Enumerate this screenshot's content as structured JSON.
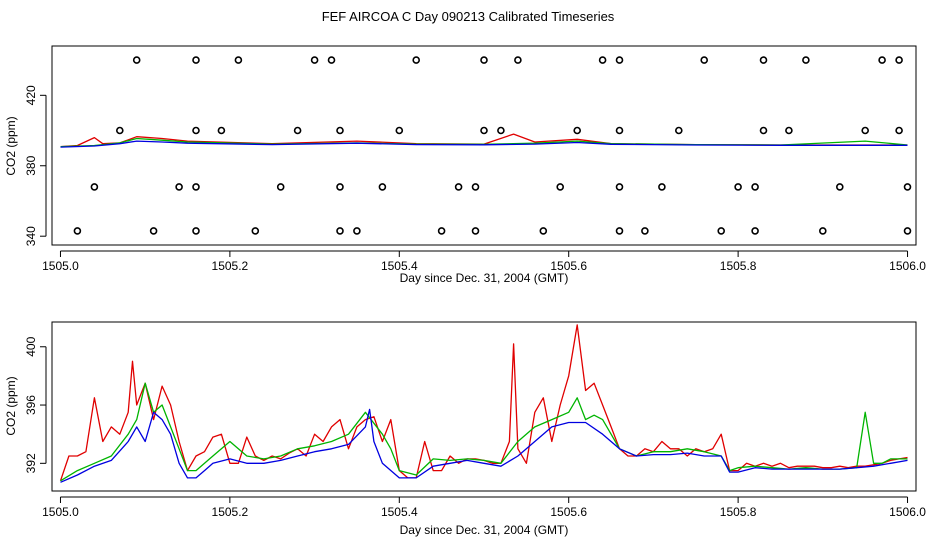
{
  "title": "FEF AIRCOA C  Day 090213  Calibrated Timeseries",
  "colors": {
    "red": "#e00000",
    "green": "#00b400",
    "blue": "#0000e0",
    "axis": "#000000"
  },
  "chart_data": [
    {
      "type": "scatter",
      "xlabel": "Day since Dec. 31, 2004 (GMT)",
      "ylabel": "CO2 (ppm)",
      "xlim": [
        1504.99,
        1506.01
      ],
      "ylim": [
        335,
        448
      ],
      "xticks": [
        "1505.0",
        "1505.2",
        "1505.4",
        "1505.6",
        "1505.8",
        "1506.0"
      ],
      "xtick_values": [
        1505.0,
        1505.2,
        1505.4,
        1505.6,
        1505.8,
        1506.0
      ],
      "yticks": [
        "340",
        "380",
        "420"
      ],
      "ytick_values": [
        340,
        380,
        420
      ],
      "standards": {
        "level_440": [
          1505.09,
          1505.16,
          1505.21,
          1505.3,
          1505.32,
          1505.42,
          1505.5,
          1505.54,
          1505.64,
          1505.66,
          1505.76,
          1505.83,
          1505.88,
          1505.97,
          1505.99
        ],
        "level_400": [
          1505.07,
          1505.16,
          1505.19,
          1505.28,
          1505.33,
          1505.4,
          1505.5,
          1505.52,
          1505.61,
          1505.66,
          1505.73,
          1505.83,
          1505.86,
          1505.95,
          1505.99
        ],
        "level_368": [
          1505.04,
          1505.14,
          1505.16,
          1505.26,
          1505.33,
          1505.38,
          1505.47,
          1505.49,
          1505.59,
          1505.66,
          1505.71,
          1505.8,
          1505.82,
          1505.92,
          1506.0
        ],
        "level_343": [
          1505.02,
          1505.11,
          1505.16,
          1505.23,
          1505.33,
          1505.35,
          1505.45,
          1505.49,
          1505.57,
          1505.66,
          1505.69,
          1505.78,
          1505.82,
          1505.9,
          1506.0
        ]
      },
      "series": [
        {
          "color": "red",
          "x": [
            1505.0,
            1505.02,
            1505.04,
            1505.05,
            1505.07,
            1505.09,
            1505.12,
            1505.15,
            1505.25,
            1505.35,
            1505.42,
            1505.5,
            1505.535,
            1505.56,
            1505.61,
            1505.65,
            1505.75,
            1505.85,
            1506.0
          ],
          "y": [
            390.8,
            391.5,
            396.0,
            392.5,
            393.0,
            396.5,
            395.5,
            394.0,
            392.5,
            394.0,
            392.5,
            392.3,
            398.0,
            393.5,
            395.0,
            392.5,
            392.0,
            391.8,
            391.8
          ]
        },
        {
          "color": "green",
          "x": [
            1505.0,
            1505.04,
            1505.07,
            1505.09,
            1505.12,
            1505.15,
            1505.25,
            1505.35,
            1505.42,
            1505.5,
            1505.56,
            1505.61,
            1505.65,
            1505.75,
            1505.85,
            1505.95,
            1506.0
          ],
          "y": [
            390.8,
            391.5,
            393.0,
            395.5,
            394.5,
            393.5,
            392.3,
            393.0,
            392.3,
            392.2,
            392.8,
            394.0,
            392.5,
            392.0,
            391.8,
            394.0,
            391.8
          ]
        },
        {
          "color": "blue",
          "x": [
            1505.0,
            1505.04,
            1505.07,
            1505.09,
            1505.12,
            1505.15,
            1505.25,
            1505.35,
            1505.42,
            1505.5,
            1505.56,
            1505.61,
            1505.65,
            1505.75,
            1505.85,
            1505.95,
            1506.0
          ],
          "y": [
            390.6,
            391.2,
            392.5,
            394.0,
            393.5,
            392.8,
            392.0,
            392.8,
            392.0,
            391.9,
            392.3,
            393.2,
            392.2,
            391.8,
            391.6,
            391.6,
            391.6
          ]
        }
      ]
    },
    {
      "type": "line",
      "xlabel": "Day since Dec. 31, 2004 (GMT)",
      "ylabel": "CO2 (ppm)",
      "xlim": [
        1504.99,
        1506.01
      ],
      "ylim": [
        390.1,
        401.7
      ],
      "xticks": [
        "1505.0",
        "1505.2",
        "1505.4",
        "1505.6",
        "1505.8",
        "1506.0"
      ],
      "xtick_values": [
        1505.0,
        1505.2,
        1505.4,
        1505.6,
        1505.8,
        1506.0
      ],
      "yticks": [
        "392",
        "396",
        "400"
      ],
      "ytick_values": [
        392,
        396,
        400
      ],
      "series": [
        {
          "color": "red",
          "x": [
            1505.0,
            1505.01,
            1505.02,
            1505.03,
            1505.04,
            1505.05,
            1505.06,
            1505.07,
            1505.08,
            1505.085,
            1505.09,
            1505.1,
            1505.11,
            1505.12,
            1505.13,
            1505.14,
            1505.15,
            1505.16,
            1505.17,
            1505.18,
            1505.19,
            1505.2,
            1505.21,
            1505.22,
            1505.23,
            1505.24,
            1505.25,
            1505.26,
            1505.27,
            1505.28,
            1505.29,
            1505.3,
            1505.31,
            1505.32,
            1505.33,
            1505.34,
            1505.35,
            1505.36,
            1505.37,
            1505.38,
            1505.39,
            1505.4,
            1505.41,
            1505.42,
            1505.43,
            1505.44,
            1505.45,
            1505.46,
            1505.47,
            1505.48,
            1505.49,
            1505.5,
            1505.51,
            1505.52,
            1505.53,
            1505.535,
            1505.54,
            1505.55,
            1505.56,
            1505.57,
            1505.58,
            1505.59,
            1505.6,
            1505.61,
            1505.62,
            1505.63,
            1505.64,
            1505.65,
            1505.66,
            1505.67,
            1505.68,
            1505.69,
            1505.7,
            1505.71,
            1505.72,
            1505.73,
            1505.74,
            1505.75,
            1505.76,
            1505.77,
            1505.78,
            1505.79,
            1505.8,
            1505.81,
            1505.82,
            1505.83,
            1505.84,
            1505.85,
            1505.86,
            1505.87,
            1505.88,
            1505.89,
            1505.9,
            1505.91,
            1505.92,
            1505.93,
            1505.94,
            1505.95,
            1505.96,
            1505.97,
            1505.98,
            1505.99,
            1506.0
          ],
          "y": [
            390.8,
            392.5,
            392.5,
            392.8,
            396.5,
            393.5,
            394.5,
            394.0,
            395.5,
            399.0,
            396.0,
            397.5,
            395.0,
            397.3,
            396.0,
            393.5,
            391.5,
            392.5,
            392.8,
            393.8,
            394.0,
            392.0,
            392.0,
            393.8,
            392.5,
            392.2,
            392.5,
            392.3,
            392.7,
            393.0,
            392.5,
            394.0,
            393.5,
            394.5,
            395.0,
            393.0,
            394.5,
            395.0,
            395.2,
            393.5,
            395.0,
            391.5,
            391.0,
            391.0,
            393.5,
            391.5,
            391.5,
            392.5,
            392.0,
            392.3,
            392.3,
            392.2,
            392.0,
            392.0,
            393.5,
            400.2,
            393.0,
            392.0,
            395.5,
            396.5,
            393.5,
            396.0,
            398.0,
            401.5,
            397.0,
            397.5,
            396.0,
            394.5,
            393.0,
            392.5,
            392.5,
            393.0,
            392.8,
            393.5,
            393.0,
            393.0,
            392.5,
            393.0,
            392.8,
            393.0,
            394.0,
            391.5,
            391.5,
            392.0,
            391.8,
            392.0,
            391.8,
            392.0,
            391.7,
            391.8,
            391.8,
            391.8,
            391.7,
            391.7,
            391.8,
            391.7,
            391.8,
            391.8,
            391.9,
            392.0,
            392.2,
            392.3,
            392.4
          ]
        },
        {
          "color": "green",
          "x": [
            1505.0,
            1505.02,
            1505.04,
            1505.06,
            1505.08,
            1505.09,
            1505.1,
            1505.11,
            1505.12,
            1505.13,
            1505.14,
            1505.15,
            1505.16,
            1505.17,
            1505.18,
            1505.2,
            1505.22,
            1505.24,
            1505.26,
            1505.28,
            1505.3,
            1505.32,
            1505.34,
            1505.36,
            1505.38,
            1505.39,
            1505.4,
            1505.42,
            1505.44,
            1505.46,
            1505.48,
            1505.5,
            1505.52,
            1505.54,
            1505.56,
            1505.58,
            1505.6,
            1505.61,
            1505.62,
            1505.63,
            1505.64,
            1505.65,
            1505.66,
            1505.68,
            1505.7,
            1505.72,
            1505.74,
            1505.76,
            1505.78,
            1505.79,
            1505.8,
            1505.82,
            1505.84,
            1505.86,
            1505.88,
            1505.9,
            1505.92,
            1505.94,
            1505.95,
            1505.96,
            1505.97,
            1505.98,
            1506.0
          ],
          "y": [
            390.8,
            391.5,
            392.0,
            392.5,
            394.0,
            395.0,
            397.5,
            395.5,
            396.0,
            394.5,
            393.0,
            391.5,
            391.5,
            392.0,
            392.5,
            393.5,
            392.5,
            392.3,
            392.5,
            393.0,
            393.2,
            393.5,
            394.0,
            395.5,
            394.0,
            393.0,
            391.5,
            391.2,
            392.3,
            392.2,
            392.3,
            392.2,
            392.0,
            393.5,
            394.5,
            395.0,
            395.5,
            396.5,
            395.0,
            395.3,
            395.0,
            394.0,
            393.0,
            392.5,
            392.8,
            392.8,
            393.0,
            392.8,
            392.5,
            391.5,
            391.7,
            391.8,
            391.7,
            391.6,
            391.7,
            391.6,
            391.6,
            391.7,
            395.5,
            392.0,
            392.0,
            392.3,
            392.3
          ]
        },
        {
          "color": "blue",
          "x": [
            1505.0,
            1505.02,
            1505.04,
            1505.06,
            1505.08,
            1505.09,
            1505.1,
            1505.11,
            1505.12,
            1505.13,
            1505.14,
            1505.15,
            1505.16,
            1505.17,
            1505.18,
            1505.2,
            1505.22,
            1505.24,
            1505.26,
            1505.28,
            1505.3,
            1505.32,
            1505.34,
            1505.36,
            1505.365,
            1505.37,
            1505.38,
            1505.4,
            1505.42,
            1505.44,
            1505.46,
            1505.48,
            1505.5,
            1505.52,
            1505.54,
            1505.56,
            1505.58,
            1505.6,
            1505.62,
            1505.64,
            1505.66,
            1505.68,
            1505.7,
            1505.72,
            1505.74,
            1505.76,
            1505.78,
            1505.79,
            1505.8,
            1505.82,
            1505.84,
            1505.86,
            1505.88,
            1505.9,
            1505.92,
            1505.94,
            1505.96,
            1505.98,
            1506.0
          ],
          "y": [
            390.7,
            391.2,
            391.8,
            392.2,
            393.5,
            394.5,
            393.5,
            395.5,
            395.0,
            394.0,
            392.0,
            391.0,
            391.0,
            391.5,
            392.0,
            392.3,
            392.0,
            392.0,
            392.2,
            392.5,
            392.8,
            393.0,
            393.3,
            394.5,
            395.7,
            393.5,
            392.0,
            391.0,
            391.0,
            391.8,
            392.0,
            392.2,
            392.0,
            391.8,
            392.5,
            393.5,
            394.5,
            394.8,
            394.8,
            394.0,
            393.0,
            392.5,
            392.6,
            392.6,
            392.7,
            392.5,
            392.5,
            391.4,
            391.4,
            391.7,
            391.6,
            391.6,
            391.6,
            391.6,
            391.6,
            391.7,
            391.8,
            392.0,
            392.2
          ]
        }
      ]
    }
  ]
}
